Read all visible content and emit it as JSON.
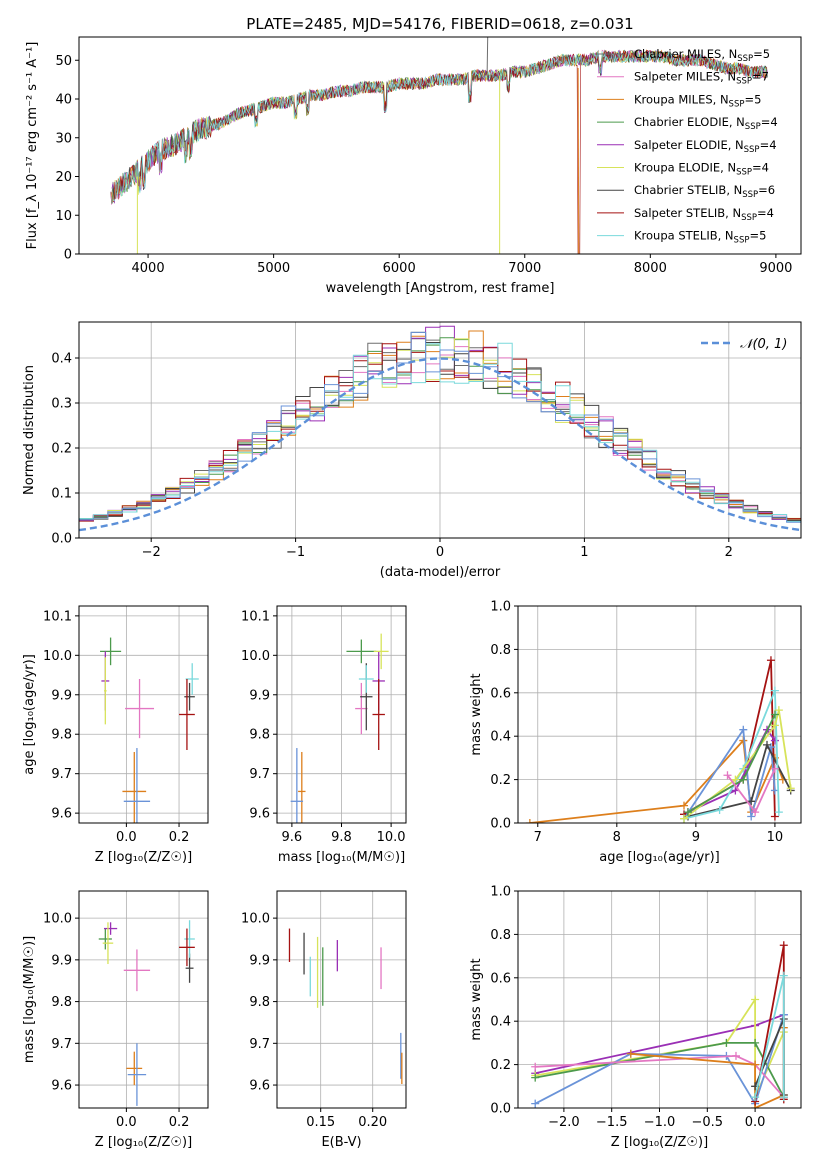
{
  "figure": {
    "title": "PLATE=2485, MJD=54176, FIBERID=0618, z=0.031"
  },
  "palette": [
    "#6e6e6e",
    "#e377c2",
    "#dd7f1c",
    "#4c9a4c",
    "#9a2fb5",
    "#d7e35a",
    "#444444",
    "#a51212",
    "#7ad9dc",
    "#6a93d8"
  ],
  "chart_data": [
    {
      "id": "spectrum",
      "type": "line",
      "xlabel": "wavelength [Angstrom, rest frame]",
      "ylabel": "Flux [f_λ 10⁻¹⁷ erg cm⁻² s⁻¹ A⁻¹]",
      "xlim": [
        3450,
        9200
      ],
      "ylim": [
        0,
        56
      ],
      "xticks": [
        4000,
        5000,
        6000,
        7000,
        8000,
        9000
      ],
      "yticks": [
        0,
        10,
        20,
        30,
        40,
        50
      ],
      "grid": false,
      "legend_position": "top-right",
      "continuum": {
        "x": [
          3700,
          3800,
          3900,
          4000,
          4100,
          4200,
          4300,
          4400,
          4500,
          4600,
          4700,
          4800,
          4900,
          5000,
          5100,
          5200,
          5300,
          5400,
          5500,
          5600,
          5700,
          5800,
          5900,
          6000,
          6100,
          6200,
          6300,
          6400,
          6500,
          6600,
          6700,
          6800,
          6900,
          7000,
          7100,
          7200,
          7300,
          7400,
          7500,
          7600,
          7700,
          7800,
          7900,
          8000,
          8100,
          8200,
          8300,
          8400,
          8500,
          8600,
          8700,
          8800,
          8900
        ],
        "y": [
          15,
          18,
          21,
          24,
          27,
          28,
          30,
          32,
          33,
          34,
          36,
          37,
          38,
          39,
          39,
          40,
          41,
          41,
          42,
          42,
          43,
          43,
          43,
          44,
          44,
          44,
          45,
          45,
          45,
          46,
          46,
          46,
          47,
          47,
          48,
          49,
          50,
          50,
          50,
          51,
          51,
          51,
          51,
          51,
          51,
          50,
          50,
          50,
          49,
          48,
          48,
          47,
          47
        ]
      },
      "series": [
        {
          "name": "Chabrier MILES, N",
          "sub": "SSP",
          "suffix": "=5"
        },
        {
          "name": "Salpeter MILES, N",
          "sub": "SSP",
          "suffix": "=7"
        },
        {
          "name": "Kroupa MILES, N",
          "sub": "SSP",
          "suffix": "=5"
        },
        {
          "name": "Chabrier ELODIE, N",
          "sub": "SSP",
          "suffix": "=4"
        },
        {
          "name": "Salpeter ELODIE, N",
          "sub": "SSP",
          "suffix": "=4"
        },
        {
          "name": "Kroupa ELODIE, N",
          "sub": "SSP",
          "suffix": "=4"
        },
        {
          "name": "Chabrier STELIB, N",
          "sub": "SSP",
          "suffix": "=6"
        },
        {
          "name": "Salpeter STELIB, N",
          "sub": "SSP",
          "suffix": "=4"
        },
        {
          "name": "Kroupa STELIB, N",
          "sub": "SSP",
          "suffix": "=5"
        }
      ]
    },
    {
      "id": "residuals",
      "type": "histogram",
      "xlabel": "(data-model)/error",
      "ylabel": "Normed distribution",
      "xlim": [
        -2.5,
        2.5
      ],
      "ylim": [
        0,
        0.48
      ],
      "xticks": [
        -2,
        -1,
        0,
        1,
        2
      ],
      "yticks": [
        0.0,
        0.1,
        0.2,
        0.3,
        0.4
      ],
      "grid": true,
      "legend_position": "top-right",
      "bin_width": 0.1,
      "bin_start": -2.5,
      "gaussian": {
        "label": "𝒩(0, 1)",
        "mean": 0,
        "sigma": 1
      }
    },
    {
      "id": "age_vs_Z",
      "type": "scatter",
      "xlabel": "Z [log₁₀(Z/Z☉)]",
      "ylabel": "age  [log₁₀(age/yr)]",
      "xlim": [
        -0.18,
        0.31
      ],
      "ylim": [
        9.575,
        10.125
      ],
      "xticks": [
        0.0,
        0.2
      ],
      "yticks": [
        9.6,
        9.7,
        9.8,
        9.9,
        10.0,
        10.1
      ],
      "grid": true,
      "points": [
        {
          "x": -0.06,
          "y": 10.01,
          "dx": 0.08,
          "dy": 0.07,
          "c": 3
        },
        {
          "x": -0.08,
          "y": 9.935,
          "dx": 0.03,
          "dy": 0.15,
          "c": 4
        },
        {
          "x": -0.08,
          "y": 9.91,
          "dx": 0.01,
          "dy": 0.17,
          "c": 5
        },
        {
          "x": 0.05,
          "y": 9.865,
          "dx": 0.11,
          "dy": 0.15,
          "c": 1
        },
        {
          "x": 0.03,
          "y": 9.655,
          "dx": 0.09,
          "dy": 0.2,
          "c": 2
        },
        {
          "x": 0.04,
          "y": 9.63,
          "dx": 0.1,
          "dy": 0.27,
          "c": 9
        },
        {
          "x": 0.24,
          "y": 9.895,
          "dx": 0.04,
          "dy": 0.07,
          "c": 6
        },
        {
          "x": 0.25,
          "y": 9.94,
          "dx": 0.05,
          "dy": 0.08,
          "c": 8
        },
        {
          "x": 0.23,
          "y": 9.85,
          "dx": 0.06,
          "dy": 0.18,
          "c": 7
        }
      ]
    },
    {
      "id": "age_vs_mass",
      "type": "scatter",
      "xlabel": "mass [log₁₀(M/M☉)]",
      "ylabel": "",
      "xlim": [
        9.54,
        10.06
      ],
      "ylim": [
        9.575,
        10.125
      ],
      "xticks": [
        9.6,
        9.8,
        10.0
      ],
      "yticks": [
        9.6,
        9.7,
        9.8,
        9.9,
        10.0,
        10.1
      ],
      "grid": true,
      "points": [
        {
          "x": 9.88,
          "y": 10.01,
          "dx": 0.12,
          "dy": 0.06,
          "c": 3
        },
        {
          "x": 9.95,
          "y": 9.935,
          "dx": 0.05,
          "dy": 0.15,
          "c": 4
        },
        {
          "x": 9.96,
          "y": 10.01,
          "dx": 0.06,
          "dy": 0.09,
          "c": 5
        },
        {
          "x": 9.88,
          "y": 9.865,
          "dx": 0.05,
          "dy": 0.13,
          "c": 1
        },
        {
          "x": 9.64,
          "y": 9.655,
          "dx": 0.03,
          "dy": 0.2,
          "c": 2
        },
        {
          "x": 9.62,
          "y": 9.63,
          "dx": 0.05,
          "dy": 0.27,
          "c": 9
        },
        {
          "x": 9.9,
          "y": 9.895,
          "dx": 0.05,
          "dy": 0.17,
          "c": 6
        },
        {
          "x": 9.9,
          "y": 9.94,
          "dx": 0.06,
          "dy": 0.07,
          "c": 8
        },
        {
          "x": 9.95,
          "y": 9.85,
          "dx": 0.05,
          "dy": 0.18,
          "c": 7
        }
      ]
    },
    {
      "id": "weight_vs_age",
      "type": "line",
      "xlabel": "age  [log₁₀(age/yr)]",
      "ylabel": "mass weight",
      "xlim": [
        6.75,
        10.33
      ],
      "ylim": [
        0,
        1
      ],
      "xticks": [
        7,
        8,
        9,
        10
      ],
      "yticks": [
        0.0,
        0.2,
        0.4,
        0.6,
        0.8,
        1.0
      ],
      "grid": true,
      "series": [
        {
          "c": 2,
          "x": [
            6.9,
            8.85,
            9.6,
            9.7,
            10.0,
            10.1
          ],
          "y": [
            0.0,
            0.08,
            0.38,
            0.05,
            0.3,
            0.2
          ]
        },
        {
          "c": 7,
          "x": [
            8.85,
            9.6,
            9.95,
            10.0
          ],
          "y": [
            0.04,
            0.2,
            0.75,
            0.03
          ]
        },
        {
          "c": 9,
          "x": [
            8.85,
            9.6,
            9.7,
            9.95,
            10.0
          ],
          "y": [
            0.02,
            0.43,
            0.03,
            0.35,
            0.15
          ]
        },
        {
          "c": 4,
          "x": [
            8.9,
            9.5,
            9.9,
            10.0
          ],
          "y": [
            0.05,
            0.15,
            0.43,
            0.38
          ]
        },
        {
          "c": 6,
          "x": [
            8.9,
            9.7,
            9.9,
            10.2
          ],
          "y": [
            0.03,
            0.1,
            0.36,
            0.15
          ]
        },
        {
          "c": 8,
          "x": [
            8.85,
            9.3,
            9.6,
            10.0,
            10.05
          ],
          "y": [
            0.02,
            0.06,
            0.25,
            0.61,
            0.05
          ]
        },
        {
          "c": 5,
          "x": [
            8.85,
            9.5,
            10.0,
            10.05,
            10.2
          ],
          "y": [
            0.02,
            0.2,
            0.45,
            0.52,
            0.16
          ]
        },
        {
          "c": 3,
          "x": [
            8.9,
            9.6,
            10.0
          ],
          "y": [
            0.05,
            0.2,
            0.5
          ]
        },
        {
          "c": 1,
          "x": [
            9.4,
            9.75,
            10.0
          ],
          "y": [
            0.22,
            0.05,
            0.25
          ]
        }
      ]
    },
    {
      "id": "mass_vs_Z",
      "type": "scatter",
      "xlabel": "Z [log₁₀(Z/Z☉)]",
      "ylabel": "mass [log₁₀(M/M☉)]",
      "xlim": [
        -0.18,
        0.31
      ],
      "ylim": [
        9.545,
        10.065
      ],
      "xticks": [
        0.0,
        0.2
      ],
      "yticks": [
        9.6,
        9.7,
        9.8,
        9.9,
        10.0
      ],
      "grid": true,
      "points": [
        {
          "x": -0.08,
          "y": 9.95,
          "dx": 0.05,
          "dy": 0.05,
          "c": 3
        },
        {
          "x": -0.06,
          "y": 9.975,
          "dx": 0.05,
          "dy": 0.03,
          "c": 4
        },
        {
          "x": -0.07,
          "y": 9.94,
          "dx": 0.04,
          "dy": 0.1,
          "c": 5
        },
        {
          "x": 0.04,
          "y": 9.875,
          "dx": 0.1,
          "dy": 0.1,
          "c": 1
        },
        {
          "x": 0.03,
          "y": 9.64,
          "dx": 0.06,
          "dy": 0.08,
          "c": 2
        },
        {
          "x": 0.04,
          "y": 9.625,
          "dx": 0.07,
          "dy": 0.15,
          "c": 9
        },
        {
          "x": 0.24,
          "y": 9.88,
          "dx": 0.03,
          "dy": 0.07,
          "c": 6
        },
        {
          "x": 0.24,
          "y": 9.95,
          "dx": 0.04,
          "dy": 0.09,
          "c": 8
        },
        {
          "x": 0.23,
          "y": 9.93,
          "dx": 0.06,
          "dy": 0.09,
          "c": 7
        }
      ]
    },
    {
      "id": "mass_vs_EBV",
      "type": "scatter",
      "xlabel": "E(B-V)",
      "ylabel": "",
      "xlim": [
        0.108,
        0.232
      ],
      "ylim": [
        9.545,
        10.065
      ],
      "xticks": [
        0.15,
        0.2
      ],
      "yticks": [
        9.6,
        9.7,
        9.8,
        9.9,
        10.0
      ],
      "grid": true,
      "points": [
        {
          "x": 0.12,
          "y": 9.935,
          "dx": 0,
          "dy": 0.08,
          "c": 7
        },
        {
          "x": 0.134,
          "y": 9.915,
          "dx": 0,
          "dy": 0.1,
          "c": 6
        },
        {
          "x": 0.14,
          "y": 9.86,
          "dx": 0,
          "dy": 0.095,
          "c": 8
        },
        {
          "x": 0.147,
          "y": 9.87,
          "dx": 0,
          "dy": 0.17,
          "c": 5
        },
        {
          "x": 0.152,
          "y": 9.86,
          "dx": 0,
          "dy": 0.14,
          "c": 3
        },
        {
          "x": 0.166,
          "y": 9.91,
          "dx": 0,
          "dy": 0.075,
          "c": 4
        },
        {
          "x": 0.208,
          "y": 9.88,
          "dx": 0,
          "dy": 0.1,
          "c": 1
        },
        {
          "x": 0.227,
          "y": 9.67,
          "dx": 0,
          "dy": 0.11,
          "c": 9
        },
        {
          "x": 0.228,
          "y": 9.64,
          "dx": 0,
          "dy": 0.075,
          "c": 2
        }
      ]
    },
    {
      "id": "weight_vs_Z",
      "type": "line",
      "xlabel": "Z [log₁₀(Z/Z☉)]",
      "ylabel": "mass weight",
      "xlim": [
        -2.48,
        0.48
      ],
      "ylim": [
        0,
        1
      ],
      "xticks": [
        -2.0,
        -1.5,
        -1.0,
        -0.5,
        0.0
      ],
      "yticks": [
        0.0,
        0.2,
        0.4,
        0.6,
        0.8,
        1.0
      ],
      "grid": true,
      "series": [
        {
          "c": 4,
          "x": [
            -2.3,
            0.0,
            0.3
          ],
          "y": [
            0.16,
            0.38,
            0.43
          ]
        },
        {
          "c": 5,
          "x": [
            -2.3,
            -0.3,
            0.0,
            0.0,
            0.3
          ],
          "y": [
            0.15,
            0.3,
            0.5,
            0.05,
            0.35
          ]
        },
        {
          "c": 3,
          "x": [
            -2.3,
            -0.3,
            0.0,
            0.3
          ],
          "y": [
            0.14,
            0.3,
            0.3,
            0.05
          ]
        },
        {
          "c": 9,
          "x": [
            -2.3,
            -1.3,
            -0.3,
            0.0,
            0.3
          ],
          "y": [
            0.02,
            0.25,
            0.24,
            0.02,
            0.43
          ]
        },
        {
          "c": 1,
          "x": [
            -2.3,
            -0.2,
            0.0,
            0.3
          ],
          "y": [
            0.19,
            0.24,
            0.2,
            0.05
          ]
        },
        {
          "c": 2,
          "x": [
            -1.3,
            0.0,
            0.0,
            0.3,
            0.3
          ],
          "y": [
            0.25,
            0.2,
            0.0,
            0.06,
            0.37
          ]
        },
        {
          "c": 7,
          "x": [
            0.0,
            0.3,
            0.3
          ],
          "y": [
            0.03,
            0.75,
            0.04
          ]
        },
        {
          "c": 6,
          "x": [
            0.0,
            0.3,
            0.3
          ],
          "y": [
            0.1,
            0.41,
            0.06
          ]
        },
        {
          "c": 8,
          "x": [
            0.0,
            0.3,
            0.3
          ],
          "y": [
            0.05,
            0.61,
            0.05
          ]
        }
      ]
    }
  ]
}
